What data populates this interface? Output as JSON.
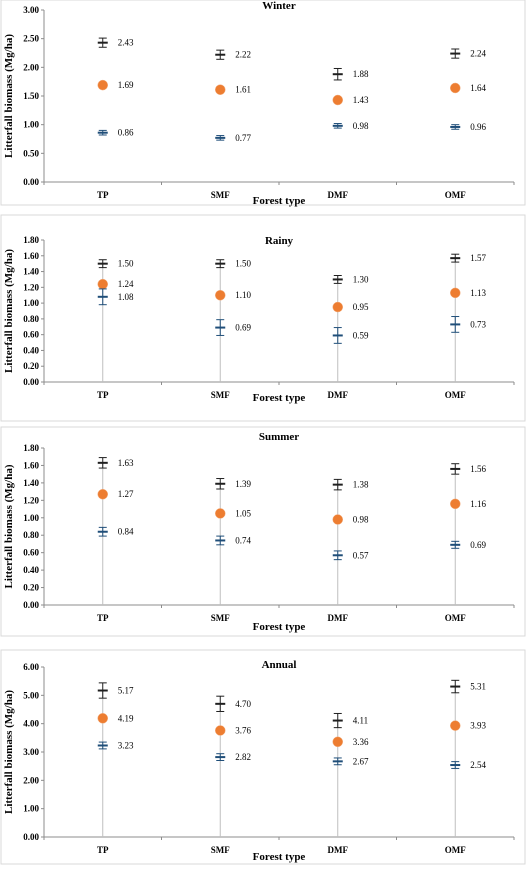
{
  "colors": {
    "max": "#1f1f1f",
    "mean": "#ed7d31",
    "min": "#1f4e79"
  },
  "chart_data": [
    {
      "type": "scatter",
      "title": "Winter",
      "xlabel": "Forest type",
      "ylabel": "Litterfall biomass (Mg/ha)",
      "categories": [
        "TP",
        "SMF",
        "DMF",
        "OMF"
      ],
      "ylim": [
        0,
        3
      ],
      "yticks": [
        "0.00",
        "0.50",
        "1.00",
        "1.50",
        "2.00",
        "2.50",
        "3.00"
      ],
      "drop_lines": false,
      "series": [
        {
          "marker": "error-bar",
          "values": [
            2.43,
            2.22,
            1.88,
            2.24
          ],
          "labels": [
            "2.43",
            "2.22",
            "1.88",
            "2.24"
          ],
          "error": [
            0.08,
            0.08,
            0.1,
            0.08
          ]
        },
        {
          "marker": "circle",
          "values": [
            1.69,
            1.61,
            1.43,
            1.64
          ],
          "labels": [
            "1.69",
            "1.61",
            "1.43",
            "1.64"
          ]
        },
        {
          "marker": "error-bar",
          "values": [
            0.86,
            0.77,
            0.98,
            0.96
          ],
          "labels": [
            "0.86",
            "0.77",
            "0.98",
            "0.96"
          ],
          "error": [
            0.04,
            0.04,
            0.04,
            0.04
          ]
        }
      ]
    },
    {
      "type": "scatter",
      "title": "Rainy",
      "xlabel": "Forest type",
      "ylabel": "Litterfall biomass (Mg/ha)",
      "categories": [
        "TP",
        "SMF",
        "DMF",
        "OMF"
      ],
      "ylim": [
        0,
        1.8
      ],
      "yticks": [
        "0.00",
        "0.20",
        "0.40",
        "0.60",
        "0.80",
        "1.00",
        "1.20",
        "1.40",
        "1.60",
        "1.80"
      ],
      "drop_lines": true,
      "series": [
        {
          "marker": "error-bar",
          "values": [
            1.5,
            1.5,
            1.3,
            1.57
          ],
          "labels": [
            "1.50",
            "1.50",
            "1.30",
            "1.57"
          ],
          "error": [
            0.05,
            0.05,
            0.05,
            0.05
          ]
        },
        {
          "marker": "circle",
          "values": [
            1.24,
            1.1,
            0.95,
            1.13
          ],
          "labels": [
            "1.24",
            "1.10",
            "0.95",
            "1.13"
          ]
        },
        {
          "marker": "error-bar",
          "values": [
            1.08,
            0.69,
            0.59,
            0.73
          ],
          "labels": [
            "1.08",
            "0.69",
            "0.59",
            "0.73"
          ],
          "error": [
            0.1,
            0.1,
            0.1,
            0.1
          ]
        }
      ]
    },
    {
      "type": "scatter",
      "title": "Summer",
      "xlabel": "Forest type",
      "ylabel": "Litterfall biomass (Mg/ha)",
      "categories": [
        "TP",
        "SMF",
        "DMF",
        "OMF"
      ],
      "ylim": [
        0,
        1.8
      ],
      "yticks": [
        "0.00",
        "0.20",
        "0.40",
        "0.60",
        "0.80",
        "1.00",
        "1.20",
        "1.40",
        "1.60",
        "1.80"
      ],
      "drop_lines": true,
      "series": [
        {
          "marker": "error-bar",
          "values": [
            1.63,
            1.39,
            1.38,
            1.56
          ],
          "labels": [
            "1.63",
            "1.39",
            "1.38",
            "1.56"
          ],
          "error": [
            0.06,
            0.06,
            0.06,
            0.06
          ]
        },
        {
          "marker": "circle",
          "values": [
            1.27,
            1.05,
            0.98,
            1.16
          ],
          "labels": [
            "1.27",
            "1.05",
            "0.98",
            "1.16"
          ]
        },
        {
          "marker": "error-bar",
          "values": [
            0.84,
            0.74,
            0.57,
            0.69
          ],
          "labels": [
            "0.84",
            "0.74",
            "0.57",
            "0.69"
          ],
          "error": [
            0.05,
            0.05,
            0.05,
            0.04
          ]
        }
      ]
    },
    {
      "type": "scatter",
      "title": "Annual",
      "xlabel": "Forest type",
      "ylabel": "Litterfall biomass (Mg/ha)",
      "categories": [
        "TP",
        "SMF",
        "DMF",
        "OMF"
      ],
      "ylim": [
        0,
        6
      ],
      "yticks": [
        "0.00",
        "1.00",
        "2.00",
        "3.00",
        "4.00",
        "5.00",
        "6.00"
      ],
      "drop_lines": true,
      "series": [
        {
          "marker": "error-bar",
          "values": [
            5.17,
            4.7,
            4.11,
            5.31
          ],
          "labels": [
            "5.17",
            "4.70",
            "4.11",
            "5.31"
          ],
          "error": [
            0.27,
            0.27,
            0.25,
            0.22
          ]
        },
        {
          "marker": "circle",
          "values": [
            4.19,
            3.76,
            3.36,
            3.93
          ],
          "labels": [
            "4.19",
            "3.76",
            "3.36",
            "3.93"
          ]
        },
        {
          "marker": "error-bar",
          "values": [
            3.23,
            2.82,
            2.67,
            2.54
          ],
          "labels": [
            "3.23",
            "2.82",
            "2.67",
            "2.54"
          ],
          "error": [
            0.12,
            0.12,
            0.12,
            0.12
          ]
        }
      ]
    }
  ]
}
